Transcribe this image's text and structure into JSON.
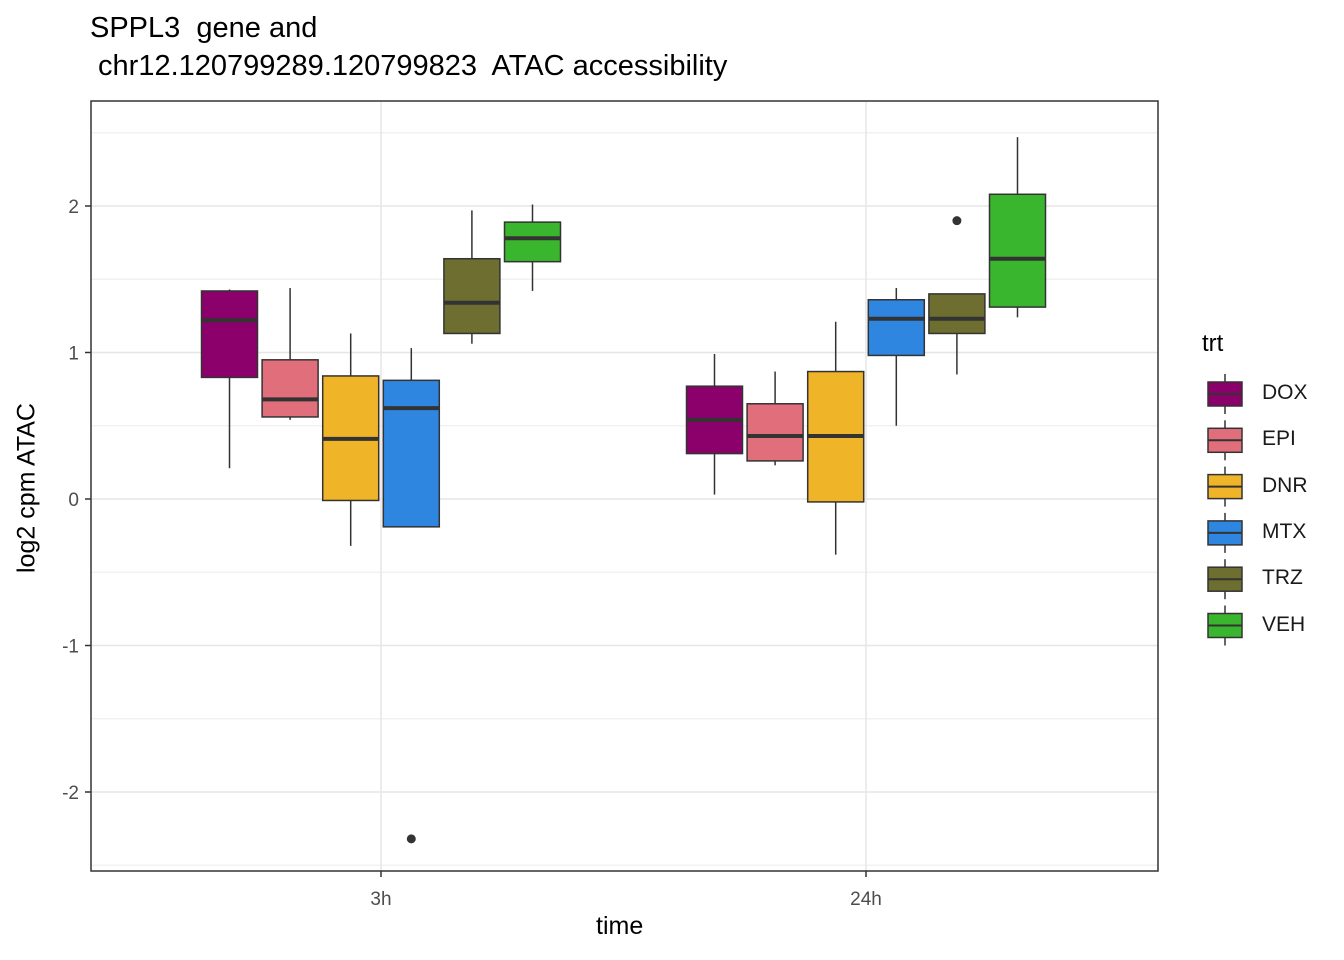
{
  "title": {
    "line1": "SPPL3  gene and",
    "line2": " chr12.120799289.120799823  ATAC accessibility"
  },
  "chart_data": {
    "type": "boxplot",
    "xlabel": "time",
    "ylabel": "log2 cpm ATAC",
    "categories": [
      "3h",
      "24h"
    ],
    "ylim": [
      -2.5,
      2.5
    ],
    "yticks": [
      2,
      1,
      0,
      -1,
      -2
    ],
    "ytick_labels": [
      "2",
      "1",
      "0",
      "-1",
      "-2"
    ],
    "grid": true,
    "legend": {
      "title": "trt",
      "position": "right"
    },
    "series": [
      {
        "name": "DOX",
        "color": "#8B006B",
        "boxes": [
          {
            "category": "3h",
            "min": 0.21,
            "q1": 0.83,
            "median": 1.22,
            "q3": 1.42,
            "max": 1.43,
            "outliers": []
          },
          {
            "category": "24h",
            "min": 0.03,
            "q1": 0.31,
            "median": 0.54,
            "q3": 0.77,
            "max": 0.99,
            "outliers": []
          }
        ]
      },
      {
        "name": "EPI",
        "color": "#E06F7B",
        "boxes": [
          {
            "category": "3h",
            "min": 0.54,
            "q1": 0.56,
            "median": 0.68,
            "q3": 0.95,
            "max": 1.44,
            "outliers": []
          },
          {
            "category": "24h",
            "min": 0.23,
            "q1": 0.26,
            "median": 0.43,
            "q3": 0.65,
            "max": 0.87,
            "outliers": []
          }
        ]
      },
      {
        "name": "DNR",
        "color": "#F0B428",
        "boxes": [
          {
            "category": "3h",
            "min": -0.32,
            "q1": -0.01,
            "median": 0.41,
            "q3": 0.84,
            "max": 1.13,
            "outliers": []
          },
          {
            "category": "24h",
            "min": -0.38,
            "q1": -0.02,
            "median": 0.43,
            "q3": 0.87,
            "max": 1.21,
            "outliers": []
          }
        ]
      },
      {
        "name": "MTX",
        "color": "#2E86E0",
        "boxes": [
          {
            "category": "3h",
            "min": -0.19,
            "q1": -0.19,
            "median": 0.62,
            "q3": 0.81,
            "max": 1.03,
            "outliers": [
              -2.32
            ]
          },
          {
            "category": "24h",
            "min": 0.5,
            "q1": 0.98,
            "median": 1.23,
            "q3": 1.36,
            "max": 1.44,
            "outliers": []
          }
        ]
      },
      {
        "name": "TRZ",
        "color": "#6E6E30",
        "boxes": [
          {
            "category": "3h",
            "min": 1.06,
            "q1": 1.13,
            "median": 1.34,
            "q3": 1.64,
            "max": 1.97,
            "outliers": []
          },
          {
            "category": "24h",
            "min": 0.85,
            "q1": 1.13,
            "median": 1.23,
            "q3": 1.4,
            "max": 1.4,
            "outliers": [
              1.9
            ]
          }
        ]
      },
      {
        "name": "VEH",
        "color": "#3AB52E",
        "boxes": [
          {
            "category": "3h",
            "min": 1.42,
            "q1": 1.62,
            "median": 1.78,
            "q3": 1.89,
            "max": 2.01,
            "outliers": []
          },
          {
            "category": "24h",
            "min": 1.24,
            "q1": 1.31,
            "median": 1.64,
            "q3": 2.08,
            "max": 2.47,
            "outliers": []
          }
        ]
      }
    ]
  }
}
